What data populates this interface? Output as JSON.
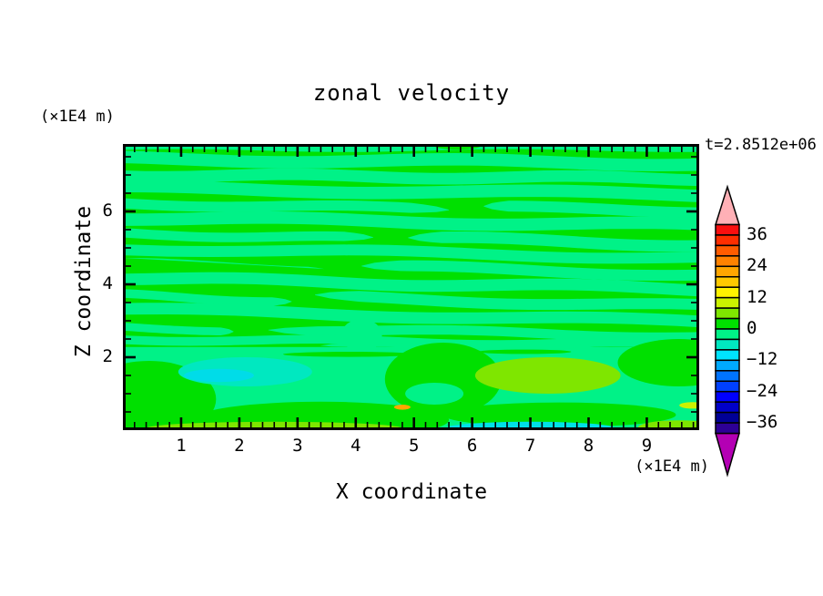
{
  "page": {
    "background": "#ffffff",
    "text_color": "#000000"
  },
  "title": "zonal velocity",
  "time_label": "t=2.8512e+06",
  "axes": {
    "x": {
      "title": "X coordinate",
      "unit": "(×1E4 m)",
      "range": [
        0,
        9.9
      ],
      "tick_values": [
        1,
        2,
        3,
        4,
        5,
        6,
        7,
        8,
        9
      ],
      "tick_labels": [
        "1",
        "2",
        "3",
        "4",
        "5",
        "6",
        "7",
        "8",
        "9"
      ],
      "minor_step": 0.2
    },
    "z": {
      "title": "Z coordinate",
      "unit": "(×1E4 m)",
      "range": [
        0,
        7.85
      ],
      "tick_values": [
        2,
        4,
        6
      ],
      "tick_labels": [
        "2",
        "4",
        "6"
      ],
      "minor_step": 0.5
    }
  },
  "colorbar": {
    "level_min": -40,
    "level_max": 40,
    "level_step": 4,
    "labels": [
      {
        "value": 36,
        "text": "36"
      },
      {
        "value": 24,
        "text": "24"
      },
      {
        "value": 12,
        "text": "12"
      },
      {
        "value": 0,
        "text": "0"
      },
      {
        "value": -12,
        "text": "−12"
      },
      {
        "value": -24,
        "text": "−24"
      },
      {
        "value": -36,
        "text": "−36"
      }
    ],
    "arrow_top_color": "#ffb0b6",
    "arrow_bottom_color": "#b400b4"
  },
  "chart_data": {
    "type": "filled_contour",
    "title": "zonal velocity",
    "time": "t=2.8512e+06",
    "xlabel": "X coordinate (×1E4 m)",
    "ylabel": "Z coordinate (×1E4 m)",
    "x_range": [
      0,
      9.9
    ],
    "z_range": [
      0,
      7.85
    ],
    "contour_interval": 4,
    "levels": [
      -40,
      -36,
      -32,
      -28,
      -24,
      -20,
      -16,
      -12,
      -8,
      -4,
      0,
      4,
      8,
      12,
      16,
      20,
      24,
      28,
      32,
      36,
      40
    ],
    "palette_top_to_bottom_note": "palette[0] = bin +36..+40 ... palette[19] = bin -40..-36",
    "palette": [
      "#fa0f0f",
      "#ff2e00",
      "#ff5c00",
      "#ff8200",
      "#ffa600",
      "#ffc900",
      "#fff200",
      "#ccf200",
      "#7fe600",
      "#00e000",
      "#00f287",
      "#00e8c0",
      "#00e4ff",
      "#00aaff",
      "#0073ff",
      "#0040ff",
      "#0000ff",
      "#0000c8",
      "#000096",
      "#2d0096"
    ],
    "field_summary": "Mostly near-zero zonal velocity: alternating wavy horizontal bands of the 0..+4 bin (green) and -4..0 bin (spring green) above z=2.3; below z=2.3 a spring-green (-4..0) layer containing green patches, a turquoise (-8..-4) pool with cyan core near x=1-3 z=1.2-2, a chartreuse (+4..+8) lens near x=6-8.5 z=1-2, and thin chartreuse/cyan strips along the bottom boundary",
    "colors": {
      "background": "#00e000",
      "band": "#00f287"
    },
    "lower_band": {
      "z_top": 2.28,
      "color": "#00f287"
    },
    "stripes": [
      {
        "z": 7.78,
        "x": [
          0,
          9.9
        ],
        "h": 0.22,
        "tilt": 0.0,
        "amp": 0.04,
        "freq": 1.1,
        "ph": 0.5
      },
      {
        "z": 7.38,
        "x": [
          0,
          9.9
        ],
        "h": 0.34,
        "tilt": 0.12,
        "amp": 0.06,
        "freq": 1.0,
        "ph": 2.0
      },
      {
        "z": 6.95,
        "x": [
          0,
          9.9
        ],
        "h": 0.32,
        "tilt": 0.1,
        "amp": 0.05,
        "freq": 1.3,
        "ph": 4.0
      },
      {
        "z": 6.55,
        "x": [
          0,
          9.9
        ],
        "h": 0.34,
        "tilt": 0.18,
        "amp": 0.06,
        "freq": 0.9,
        "ph": 1.2
      },
      {
        "z": 6.14,
        "x": [
          0,
          5.6
        ],
        "h": 0.28,
        "tilt": 0.16,
        "amp": 0.05,
        "freq": 1.2,
        "ph": 3.1
      },
      {
        "z": 6.06,
        "x": [
          6.2,
          9.9
        ],
        "h": 0.3,
        "tilt": 0.1,
        "amp": 0.05,
        "freq": 1.1,
        "ph": 0.2
      },
      {
        "z": 5.72,
        "x": [
          0,
          9.9
        ],
        "h": 0.34,
        "tilt": 0.22,
        "amp": 0.06,
        "freq": 1.0,
        "ph": 5.0
      },
      {
        "z": 5.32,
        "x": [
          0,
          4.3
        ],
        "h": 0.26,
        "tilt": 0.14,
        "amp": 0.05,
        "freq": 1.4,
        "ph": 2.6
      },
      {
        "z": 5.18,
        "x": [
          4.9,
          9.9
        ],
        "h": 0.32,
        "tilt": 0.18,
        "amp": 0.06,
        "freq": 1.1,
        "ph": 1.0
      },
      {
        "z": 4.86,
        "x": [
          0,
          9.9
        ],
        "h": 0.3,
        "tilt": 0.26,
        "amp": 0.06,
        "freq": 0.9,
        "ph": 3.9
      },
      {
        "z": 4.48,
        "x": [
          0,
          3.6
        ],
        "h": 0.24,
        "tilt": 0.18,
        "amp": 0.05,
        "freq": 1.3,
        "ph": 0.8
      },
      {
        "z": 4.38,
        "x": [
          4.1,
          9.9
        ],
        "h": 0.3,
        "tilt": 0.22,
        "amp": 0.06,
        "freq": 1.0,
        "ph": 2.4
      },
      {
        "z": 4.02,
        "x": [
          0,
          9.9
        ],
        "h": 0.32,
        "tilt": 0.3,
        "amp": 0.06,
        "freq": 1.1,
        "ph": 5.6
      },
      {
        "z": 3.62,
        "x": [
          0,
          2.9
        ],
        "h": 0.24,
        "tilt": 0.16,
        "amp": 0.05,
        "freq": 1.5,
        "ph": 1.7
      },
      {
        "z": 3.52,
        "x": [
          3.3,
          9.9
        ],
        "h": 0.3,
        "tilt": 0.26,
        "amp": 0.06,
        "freq": 1.0,
        "ph": 4.4
      },
      {
        "z": 3.14,
        "x": [
          0,
          9.9
        ],
        "h": 0.32,
        "tilt": 0.34,
        "amp": 0.06,
        "freq": 0.9,
        "ph": 0.3
      },
      {
        "z": 2.78,
        "x": [
          0,
          1.9
        ],
        "h": 0.22,
        "tilt": 0.1,
        "amp": 0.04,
        "freq": 1.4,
        "ph": 2.9
      },
      {
        "z": 2.68,
        "x": [
          2.5,
          9.9
        ],
        "h": 0.26,
        "tilt": 0.22,
        "amp": 0.05,
        "freq": 1.1,
        "ph": 1.5
      },
      {
        "z": 2.42,
        "x": [
          0,
          9.9
        ],
        "h": 0.24,
        "tilt": 0.16,
        "amp": 0.05,
        "freq": 1.2,
        "ph": 3.6
      },
      {
        "z": 2.3,
        "x": [
          3.4,
          8.2
        ],
        "h": 0.12,
        "tilt": 0.04,
        "amp": 0.03,
        "freq": 1.6,
        "ph": 0.9
      }
    ],
    "patches": [
      {
        "shape": "ellipse",
        "cx": 0.45,
        "cz": 0.85,
        "rx": 1.15,
        "rz": 1.05,
        "color": "#00e000",
        "label": "green patch bottom-left"
      },
      {
        "shape": "ellipse",
        "cx": 3.4,
        "cz": 0.28,
        "rx": 2.2,
        "rz": 0.5,
        "color": "#00e000",
        "label": "green band bottom"
      },
      {
        "shape": "ellipse",
        "cx": 5.5,
        "cz": 1.4,
        "rx": 1.0,
        "rz": 1.0,
        "color": "#00e000",
        "label": "green blob center"
      },
      {
        "shape": "ellipse",
        "cx": 5.35,
        "cz": 1.0,
        "rx": 0.5,
        "rz": 0.3,
        "color": "#00f287",
        "label": "spring hole in center blob"
      },
      {
        "shape": "ellipse",
        "cx": 7.5,
        "cz": 0.42,
        "rx": 2.0,
        "rz": 0.34,
        "color": "#00e000",
        "label": "green band bottom-right"
      },
      {
        "shape": "ellipse",
        "cx": 9.55,
        "cz": 1.85,
        "rx": 1.05,
        "rz": 0.65,
        "color": "#00e000",
        "label": "green patch right"
      },
      {
        "shape": "ellipse",
        "cx": 3.9,
        "cz": 2.08,
        "rx": 1.15,
        "rz": 0.07,
        "color": "#00e000",
        "label": "thin green streak"
      },
      {
        "shape": "ellipse",
        "cx": 6.9,
        "cz": 2.15,
        "rx": 0.8,
        "rz": 0.06,
        "color": "#00e000",
        "label": "thin green streak"
      },
      {
        "shape": "ellipse",
        "cx": 4.1,
        "cz": 2.6,
        "rx": 0.35,
        "rz": 0.45,
        "color": "#00f287",
        "label": "spring tongue"
      },
      {
        "shape": "ellipse",
        "cx": 2.1,
        "cz": 1.6,
        "rx": 1.15,
        "rz": 0.4,
        "color": "#00e8c0",
        "label": "turquoise pool -8..-4"
      },
      {
        "shape": "ellipse",
        "cx": 1.65,
        "cz": 1.5,
        "rx": 0.6,
        "rz": 0.18,
        "color": "#00dce8",
        "label": "cyan core -12..-8"
      },
      {
        "shape": "ellipse",
        "cx": 7.3,
        "cz": 1.5,
        "rx": 1.25,
        "rz": 0.5,
        "color": "#7fe600",
        "label": "chartreuse lens +4..+8"
      },
      {
        "shape": "ellipse",
        "cx": 2.6,
        "cz": 0.05,
        "rx": 2.2,
        "rz": 0.18,
        "color": "#7fe600",
        "label": "bottom chartreuse strip"
      },
      {
        "shape": "ellipse",
        "cx": 7.0,
        "cz": 0.06,
        "rx": 1.45,
        "rz": 0.17,
        "color": "#00e0e8",
        "label": "bottom cyan strip"
      },
      {
        "shape": "ellipse",
        "cx": 9.55,
        "cz": 0.07,
        "rx": 0.7,
        "rz": 0.2,
        "color": "#7fe600",
        "label": "bottom-right chartreuse strip"
      },
      {
        "shape": "ellipse",
        "cx": 4.8,
        "cz": 0.63,
        "rx": 0.14,
        "rz": 0.07,
        "color": "#ffa600",
        "label": "tiny orange speck"
      },
      {
        "shape": "ellipse",
        "cx": 9.78,
        "cz": 0.68,
        "rx": 0.22,
        "rz": 0.09,
        "color": "#ccf200",
        "label": "tiny yellow sliver right edge"
      },
      {
        "shape": "ellipse",
        "cx": 5.75,
        "cz": 7.8,
        "rx": 0.4,
        "rz": 0.1,
        "color": "#00e000",
        "label": "green notch top edge"
      }
    ]
  }
}
